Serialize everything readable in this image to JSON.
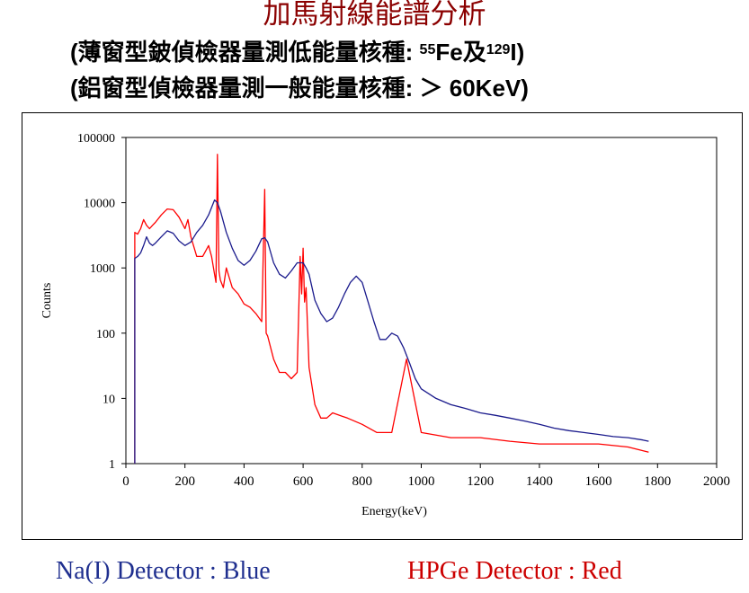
{
  "title": "加馬射線能譜分析",
  "subtitle1": {
    "prefix": "(薄窗型鈹偵檢器量測低能量核種: ",
    "sup1": "55",
    "el1": "Fe",
    "mid": "及",
    "sup2": "129",
    "el2": "I",
    "suffix": ")"
  },
  "subtitle2": "(鋁窗型偵檢器量測一般能量核種: ＞ 60KeV)",
  "legend": {
    "blue": "Na(I)  Detector : Blue",
    "red": "HPGe Detector : Red"
  },
  "colors": {
    "nai": "#1a1a8c",
    "hpge": "#ff0000",
    "title": "#8B0000"
  },
  "chart_data": {
    "type": "line",
    "yscale": "log",
    "xlabel": "Energy(keV)",
    "ylabel": "Counts",
    "xlim": [
      0,
      2000
    ],
    "ylim": [
      1,
      100000
    ],
    "xticks": [
      "0",
      "200",
      "400",
      "600",
      "800",
      "1000",
      "1200",
      "1400",
      "1600",
      "1800",
      "2000"
    ],
    "yticks": [
      "1",
      "10",
      "100",
      "1000",
      "10000",
      "100000"
    ],
    "series": [
      {
        "name": "Na(I) Detector",
        "color": "#1a1a8c",
        "x": [
          30,
          40,
          50,
          60,
          70,
          80,
          90,
          100,
          120,
          140,
          160,
          180,
          200,
          220,
          240,
          260,
          280,
          300,
          310,
          320,
          340,
          360,
          380,
          400,
          420,
          440,
          460,
          470,
          480,
          500,
          520,
          540,
          560,
          580,
          600,
          610,
          620,
          640,
          660,
          680,
          700,
          720,
          740,
          760,
          780,
          800,
          820,
          840,
          860,
          880,
          900,
          920,
          940,
          960,
          980,
          1000,
          1050,
          1100,
          1150,
          1200,
          1250,
          1300,
          1350,
          1400,
          1450,
          1500,
          1550,
          1600,
          1650,
          1700,
          1750,
          1770
        ],
        "y": [
          1400,
          1500,
          1700,
          2200,
          3000,
          2400,
          2200,
          2400,
          3000,
          3700,
          3400,
          2600,
          2200,
          2500,
          3500,
          4500,
          6500,
          11000,
          10000,
          7500,
          3500,
          2000,
          1300,
          1100,
          1300,
          1800,
          2800,
          2900,
          2500,
          1200,
          800,
          700,
          900,
          1200,
          1200,
          1000,
          800,
          320,
          200,
          150,
          170,
          250,
          400,
          600,
          750,
          600,
          300,
          150,
          80,
          80,
          100,
          90,
          60,
          35,
          20,
          14,
          10,
          8,
          7,
          6,
          5.5,
          5,
          4.5,
          4,
          3.5,
          3.2,
          3,
          2.8,
          2.6,
          2.5,
          2.3,
          2.2
        ]
      },
      {
        "name": "HPGe Detector",
        "color": "#ff0000",
        "x": [
          30,
          40,
          50,
          60,
          70,
          80,
          90,
          100,
          120,
          140,
          160,
          180,
          200,
          210,
          220,
          240,
          260,
          280,
          290,
          300,
          305,
          310,
          315,
          320,
          330,
          340,
          360,
          380,
          400,
          420,
          440,
          460,
          470,
          475,
          480,
          500,
          520,
          540,
          560,
          580,
          590,
          595,
          600,
          605,
          610,
          620,
          640,
          660,
          680,
          700,
          750,
          800,
          850,
          900,
          950,
          1000,
          1100,
          1200,
          1300,
          1400,
          1500,
          1600,
          1700,
          1770
        ],
        "y": [
          3500,
          3300,
          4000,
          5500,
          4500,
          4000,
          4500,
          5000,
          6500,
          8000,
          7800,
          6000,
          4000,
          5500,
          3000,
          1500,
          1500,
          2200,
          1500,
          800,
          600,
          55000,
          900,
          650,
          500,
          1000,
          500,
          400,
          280,
          250,
          200,
          150,
          16000,
          100,
          90,
          40,
          25,
          25,
          20,
          25,
          1500,
          400,
          2000,
          300,
          500,
          30,
          8,
          5,
          5,
          6,
          5,
          4,
          3,
          3,
          40,
          3,
          2.5,
          2.5,
          2.2,
          2,
          2,
          2,
          1.8,
          1.5
        ]
      }
    ]
  }
}
